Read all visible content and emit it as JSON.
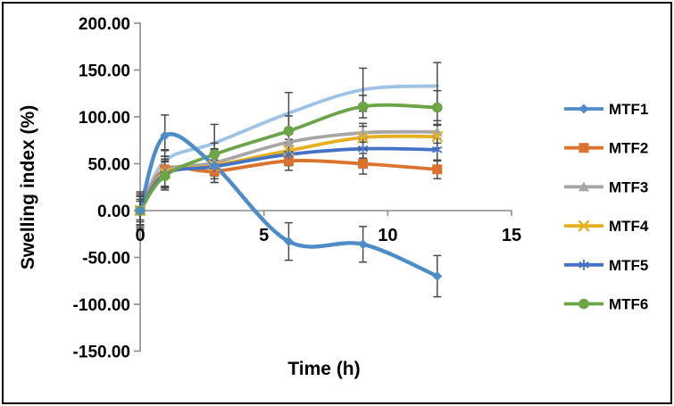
{
  "chart_data": {
    "type": "line",
    "title": "",
    "xlabel": "Time (h)",
    "ylabel": "Swelling index (%)",
    "x_label_suffix": "h",
    "x": [
      0,
      1,
      3,
      6,
      9,
      12
    ],
    "xlim": [
      0,
      15
    ],
    "ylim": [
      -150,
      200
    ],
    "x_ticks": [
      "0",
      "5",
      "10",
      "15"
    ],
    "y_ticks": [
      "200.00",
      "150.00",
      "100.00",
      "50.00",
      "0.00",
      "-50.00",
      "-100.00",
      "-150.00"
    ],
    "grid": false,
    "line_style": "smooth",
    "error_bars": true,
    "legend_position": "right",
    "series": [
      {
        "name": "MTF1",
        "color": "#4E8CC9",
        "marker": "diamond",
        "in_legend": true,
        "values": [
          0,
          80,
          48,
          -33,
          -36,
          -70
        ],
        "errors": [
          18,
          22,
          18,
          20,
          19,
          22
        ]
      },
      {
        "name": "MTF2",
        "color": "#DB722E",
        "marker": "square",
        "in_legend": true,
        "values": [
          0,
          44,
          42,
          53,
          50,
          44
        ],
        "errors": [
          15,
          20,
          12,
          10,
          11,
          10
        ]
      },
      {
        "name": "MTF3",
        "color": "#A6A6A6",
        "marker": "triangle",
        "in_legend": true,
        "values": [
          0,
          42,
          51,
          73,
          83,
          84
        ],
        "errors": [
          12,
          16,
          14,
          14,
          10,
          12
        ]
      },
      {
        "name": "MTF4",
        "color": "#E6AF20",
        "marker": "x",
        "in_legend": true,
        "values": [
          0,
          40,
          48,
          64,
          78,
          79
        ],
        "errors": [
          16,
          15,
          14,
          12,
          12,
          12
        ]
      },
      {
        "name": "MTF5",
        "color": "#4472C4",
        "marker": "asterisk",
        "in_legend": true,
        "values": [
          0,
          39,
          47,
          60,
          66,
          65
        ],
        "errors": [
          10,
          14,
          13,
          12,
          10,
          12
        ]
      },
      {
        "name": "MTF6",
        "color": "#6BA547",
        "marker": "circle",
        "in_legend": true,
        "values": [
          0,
          37,
          60,
          85,
          111,
          110
        ],
        "errors": [
          20,
          15,
          12,
          16,
          12,
          18
        ]
      },
      {
        "name": "",
        "color": "#9DC3E6",
        "marker": "none",
        "in_legend": false,
        "values": [
          0,
          53,
          72,
          104,
          129,
          133
        ],
        "errors": [
          15,
          12,
          20,
          22,
          23,
          25
        ]
      }
    ],
    "colors": {
      "axis": "#8C8C8C",
      "error_bar": "#4A4A4A",
      "background": "#FFFFFF",
      "border": "#000000"
    }
  }
}
